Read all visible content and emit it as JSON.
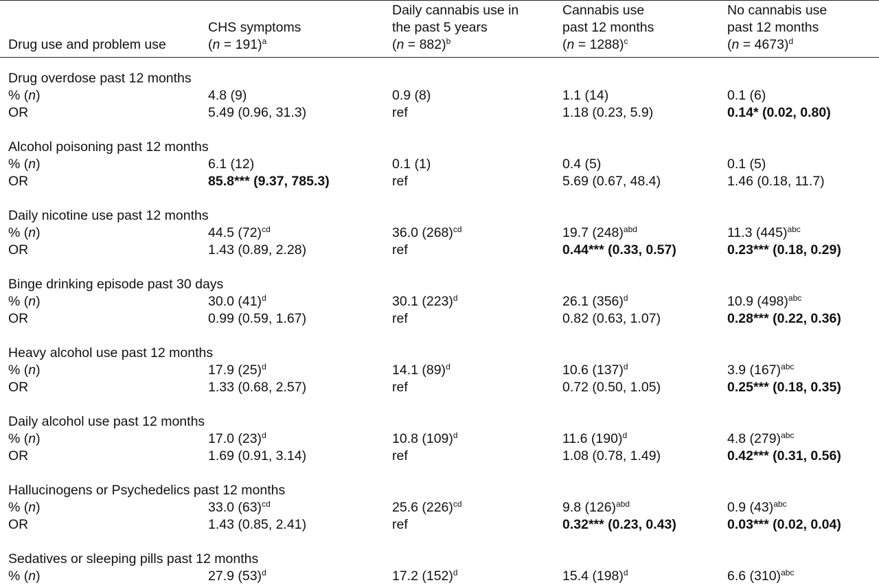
{
  "table": {
    "header": {
      "row_label": "Drug use and problem use",
      "columns": [
        {
          "line1": "",
          "line2": "CHS symptoms",
          "n": "191",
          "note": "a"
        },
        {
          "line1": "Daily cannabis use in",
          "line2": "the past 5 years",
          "n": "882",
          "note": "b"
        },
        {
          "line1": "Cannabis use",
          "line2": "past 12 months",
          "n": "1288",
          "note": "c"
        },
        {
          "line1": "No cannabis use",
          "line2": "past 12 months",
          "n": "4673",
          "note": "d"
        }
      ],
      "n_prefix": "(",
      "n_italic": "n",
      "n_eq": " = ",
      "n_suffix": ")"
    },
    "pct_label_prefix": "% (",
    "pct_label_italic": "n",
    "pct_label_suffix": ")",
    "or_label": "OR",
    "sections": [
      {
        "title": "Drug overdose past 12 months",
        "pct": [
          {
            "v": "4.8 (9)",
            "s": ""
          },
          {
            "v": "0.9 (8)",
            "s": ""
          },
          {
            "v": "1.1 (14)",
            "s": ""
          },
          {
            "v": "0.1 (6)",
            "s": ""
          }
        ],
        "or": [
          {
            "v": "5.49 (0.96, 31.3)",
            "b": false
          },
          {
            "v": "ref",
            "b": false
          },
          {
            "v": "1.18 (0.23, 5.9)",
            "b": false
          },
          {
            "v": "0.14* (0.02, 0.80)",
            "b": true
          }
        ]
      },
      {
        "title": "Alcohol poisoning past 12 months",
        "pct": [
          {
            "v": "6.1 (12)",
            "s": ""
          },
          {
            "v": "0.1 (1)",
            "s": ""
          },
          {
            "v": "0.4 (5)",
            "s": ""
          },
          {
            "v": "0.1 (5)",
            "s": ""
          }
        ],
        "or": [
          {
            "v": "85.8*** (9.37, 785.3)",
            "b": true
          },
          {
            "v": "ref",
            "b": false
          },
          {
            "v": "5.69 (0.67, 48.4)",
            "b": false
          },
          {
            "v": "1.46 (0.18, 11.7)",
            "b": false
          }
        ]
      },
      {
        "title": "Daily nicotine use past 12 months",
        "pct": [
          {
            "v": "44.5 (72)",
            "s": "cd"
          },
          {
            "v": "36.0 (268)",
            "s": "cd"
          },
          {
            "v": "19.7 (248)",
            "s": "abd"
          },
          {
            "v": "11.3 (445)",
            "s": "abc"
          }
        ],
        "or": [
          {
            "v": "1.43 (0.89, 2.28)",
            "b": false
          },
          {
            "v": "ref",
            "b": false
          },
          {
            "v": "0.44*** (0.33, 0.57)",
            "b": true
          },
          {
            "v": "0.23*** (0.18, 0.29)",
            "b": true
          }
        ]
      },
      {
        "title": "Binge drinking episode past 30 days",
        "pct": [
          {
            "v": "30.0 (41)",
            "s": "d"
          },
          {
            "v": "30.1 (223)",
            "s": "d"
          },
          {
            "v": "26.1 (356)",
            "s": "d"
          },
          {
            "v": "10.9 (498)",
            "s": "abc"
          }
        ],
        "or": [
          {
            "v": "0.99 (0.59, 1.67)",
            "b": false
          },
          {
            "v": "ref",
            "b": false
          },
          {
            "v": "0.82 (0.63, 1.07)",
            "b": false
          },
          {
            "v": "0.28*** (0.22, 0.36)",
            "b": true
          }
        ]
      },
      {
        "title": "Heavy alcohol use past 12 months",
        "pct": [
          {
            "v": "17.9 (25)",
            "s": "d"
          },
          {
            "v": "14.1 (89)",
            "s": "d"
          },
          {
            "v": "10.6 (137)",
            "s": "d"
          },
          {
            "v": "3.9 (167)",
            "s": "abc"
          }
        ],
        "or": [
          {
            "v": "1.33 (0.68, 2.57)",
            "b": false
          },
          {
            "v": "ref",
            "b": false
          },
          {
            "v": "0.72 (0.50, 1.05)",
            "b": false
          },
          {
            "v": "0.25*** (0.18, 0.35)",
            "b": true
          }
        ]
      },
      {
        "title": "Daily alcohol use past 12 months",
        "pct": [
          {
            "v": "17.0 (23)",
            "s": "d"
          },
          {
            "v": "10.8 (109)",
            "s": "d"
          },
          {
            "v": "11.6 (190)",
            "s": "d"
          },
          {
            "v": "4.8 (279)",
            "s": "abc"
          }
        ],
        "or": [
          {
            "v": "1.69 (0.91, 3.14)",
            "b": false
          },
          {
            "v": "ref",
            "b": false
          },
          {
            "v": "1.08 (0.78, 1.49)",
            "b": false
          },
          {
            "v": "0.42*** (0.31, 0.56)",
            "b": true
          }
        ]
      },
      {
        "title": "Hallucinogens or Psychedelics past 12 months",
        "pct": [
          {
            "v": "33.0 (63)",
            "s": "cd"
          },
          {
            "v": "25.6 (226)",
            "s": "cd"
          },
          {
            "v": "9.8 (126)",
            "s": "abd"
          },
          {
            "v": "0.9 (43)",
            "s": "abc"
          }
        ],
        "or": [
          {
            "v": "1.43 (0.85, 2.41)",
            "b": false
          },
          {
            "v": "ref",
            "b": false
          },
          {
            "v": "0.32*** (0.23, 0.43)",
            "b": true
          },
          {
            "v": "0.03*** (0.02, 0.04)",
            "b": true
          }
        ]
      },
      {
        "title": "Sedatives or sleeping pills past 12 months",
        "pct": [
          {
            "v": "27.9 (53)",
            "s": "d"
          },
          {
            "v": "17.2 (152)",
            "s": "d"
          },
          {
            "v": "15.4 (198)",
            "s": "d"
          },
          {
            "v": "6.6 (310)",
            "s": "abc"
          }
        ],
        "or": null
      }
    ]
  }
}
